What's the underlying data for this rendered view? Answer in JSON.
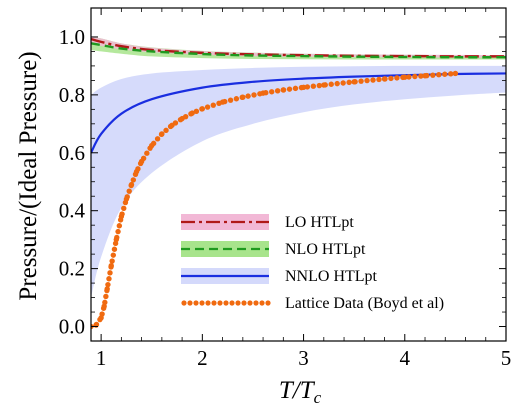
{
  "chart_data": {
    "type": "line",
    "title": "",
    "xlabel": "T/Tc",
    "ylabel": "Pressure/(Ideal Pressure)",
    "xlim": [
      0.9,
      5.0
    ],
    "ylim": [
      -0.05,
      1.1
    ],
    "x_ticks": [
      1,
      2,
      3,
      4,
      5
    ],
    "x_tick_labels": [
      "1",
      "2",
      "3",
      "4",
      "5"
    ],
    "y_ticks": [
      0.0,
      0.2,
      0.4,
      0.6,
      0.8,
      1.0
    ],
    "y_tick_labels": [
      "0.0",
      "0.2",
      "0.4",
      "0.6",
      "0.8",
      "1.0"
    ],
    "legend_position": "bottom-right",
    "series": [
      {
        "name": "LO HTLpt",
        "style": "dash-dot",
        "color": "#b01919",
        "band_color": "#f2b8d6",
        "x": [
          0.9,
          1.0,
          1.2,
          1.5,
          2.0,
          2.5,
          3.0,
          3.5,
          4.0,
          4.5,
          5.0
        ],
        "values": [
          0.993,
          0.983,
          0.968,
          0.955,
          0.945,
          0.94,
          0.937,
          0.935,
          0.934,
          0.933,
          0.933
        ],
        "band_low": [
          0.976,
          0.969,
          0.957,
          0.947,
          0.939,
          0.934,
          0.932,
          0.931,
          0.93,
          0.929,
          0.929
        ],
        "band_high": [
          1.0,
          0.995,
          0.978,
          0.963,
          0.951,
          0.945,
          0.942,
          0.94,
          0.939,
          0.938,
          0.937
        ]
      },
      {
        "name": "NLO HTLpt",
        "style": "dashed",
        "color": "#1f9a1f",
        "band_color": "#a8e48c",
        "x": [
          0.9,
          1.0,
          1.2,
          1.5,
          2.0,
          2.5,
          3.0,
          3.5,
          4.0,
          4.5,
          5.0
        ],
        "values": [
          0.978,
          0.972,
          0.96,
          0.95,
          0.941,
          0.936,
          0.934,
          0.932,
          0.931,
          0.93,
          0.93
        ],
        "band_low": [
          0.955,
          0.95,
          0.942,
          0.933,
          0.927,
          0.924,
          0.923,
          0.922,
          0.922,
          0.922,
          0.922
        ],
        "band_high": [
          1.0,
          0.995,
          0.978,
          0.964,
          0.952,
          0.946,
          0.942,
          0.94,
          0.938,
          0.937,
          0.936
        ]
      },
      {
        "name": "NNLO HTLpt",
        "style": "solid",
        "color": "#1a2ee0",
        "band_color": "#d4d9fb",
        "x": [
          0.9,
          1.0,
          1.2,
          1.5,
          2.0,
          2.5,
          3.0,
          3.5,
          4.0,
          4.5,
          5.0
        ],
        "values": [
          0.6,
          0.665,
          0.735,
          0.785,
          0.825,
          0.845,
          0.856,
          0.863,
          0.868,
          0.872,
          0.874
        ],
        "band_low": [
          0.1,
          0.24,
          0.41,
          0.53,
          0.64,
          0.7,
          0.74,
          0.767,
          0.785,
          0.798,
          0.808
        ],
        "band_high": [
          0.8,
          0.825,
          0.855,
          0.874,
          0.886,
          0.893,
          0.897,
          0.899,
          0.9,
          0.9,
          0.9
        ]
      },
      {
        "name": "Lattice Data (Boyd et al)",
        "style": "dotted",
        "color": "#f06a10",
        "x": [
          0.9,
          0.95,
          1.0,
          1.03,
          1.06,
          1.1,
          1.15,
          1.2,
          1.25,
          1.3,
          1.35,
          1.4,
          1.5,
          1.6,
          1.7,
          1.8,
          1.9,
          2.0,
          2.2,
          2.4,
          2.6,
          2.8,
          3.0,
          3.2,
          3.5,
          3.8,
          4.0,
          4.2,
          4.5
        ],
        "values": [
          0.0,
          0.005,
          0.03,
          0.07,
          0.13,
          0.21,
          0.3,
          0.38,
          0.44,
          0.49,
          0.535,
          0.57,
          0.625,
          0.665,
          0.695,
          0.718,
          0.737,
          0.752,
          0.775,
          0.792,
          0.806,
          0.817,
          0.826,
          0.834,
          0.845,
          0.855,
          0.861,
          0.866,
          0.874
        ]
      }
    ]
  }
}
